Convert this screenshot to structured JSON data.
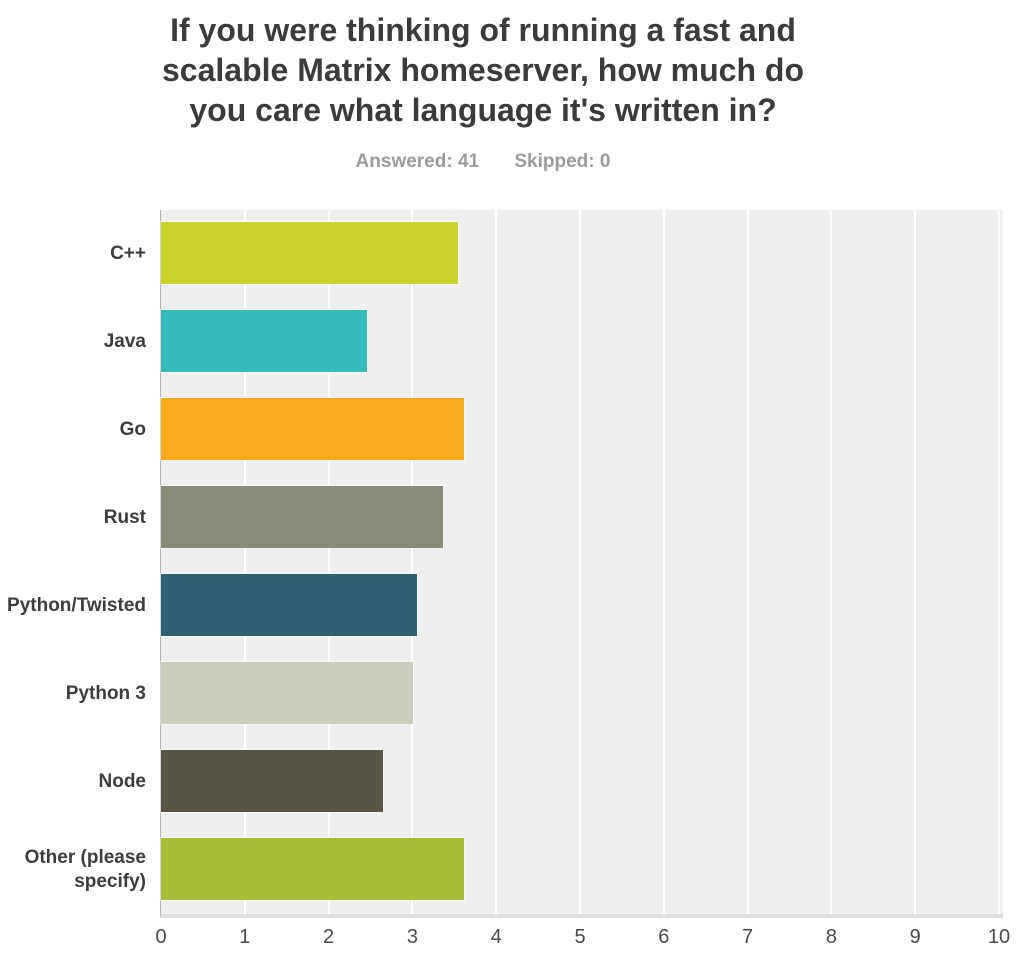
{
  "title_lines": [
    "If you were thinking of running a fast and",
    "scalable Matrix homeserver, how much do",
    "you care what language it's written in?"
  ],
  "stats": {
    "answered": "Answered: 41",
    "skipped": "Skipped: 0"
  },
  "chart_data": {
    "type": "bar",
    "orientation": "horizontal",
    "title": "If you were thinking of running a fast and scalable Matrix homeserver, how much do you care what language it's written in?",
    "answered": 41,
    "skipped": 0,
    "categories": [
      "C++",
      "Java",
      "Go",
      "Rust",
      "Python/Twisted",
      "Python 3",
      "Node",
      "Other (please specify)"
    ],
    "values": [
      3.54,
      2.46,
      3.61,
      3.37,
      3.06,
      3.01,
      2.65,
      3.62
    ],
    "bar_colors": [
      "#c9d22c",
      "#35bcba",
      "#f8ab1d",
      "#8a8a78",
      "#2e6172",
      "#cdcdbe",
      "#585546",
      "#a5bd37"
    ],
    "xlabel": "",
    "ylabel": "",
    "xlim": [
      0,
      10
    ],
    "x_ticks": [
      "0",
      "1",
      "2",
      "3",
      "4",
      "5",
      "6",
      "7",
      "8",
      "9",
      "10"
    ],
    "grid": "vertical-white-gridlines",
    "plot_background": "#efefef",
    "gridline_color": "#ffffff",
    "legend": "none"
  }
}
